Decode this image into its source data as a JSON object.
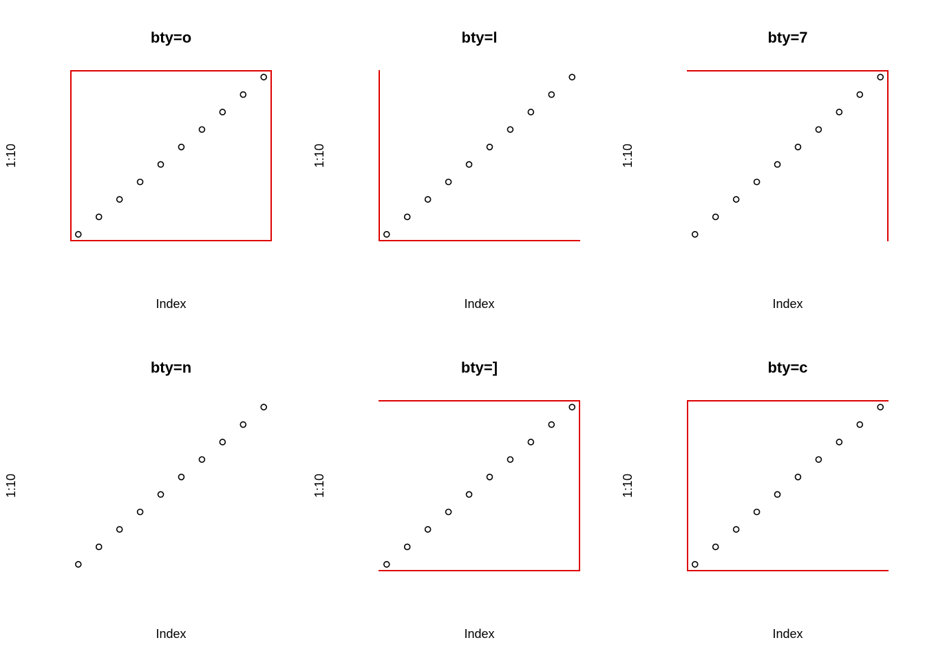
{
  "figure": {
    "colors": {
      "box": "#dd0000",
      "points": "#000000",
      "text": "#000000",
      "background": "#ffffff"
    },
    "point_shape": "open-circle"
  },
  "chart_data": [
    {
      "type": "scatter",
      "title": "bty=o",
      "xlabel": "Index",
      "ylabel": "1:10",
      "box_type": "o",
      "x": [
        1,
        2,
        3,
        4,
        5,
        6,
        7,
        8,
        9,
        10
      ],
      "y": [
        1,
        2,
        3,
        4,
        5,
        6,
        7,
        8,
        9,
        10
      ],
      "xlim": [
        1,
        10
      ],
      "ylim": [
        1,
        10
      ],
      "grid": false,
      "axes": false
    },
    {
      "type": "scatter",
      "title": "bty=l",
      "xlabel": "Index",
      "ylabel": "1:10",
      "box_type": "l",
      "x": [
        1,
        2,
        3,
        4,
        5,
        6,
        7,
        8,
        9,
        10
      ],
      "y": [
        1,
        2,
        3,
        4,
        5,
        6,
        7,
        8,
        9,
        10
      ],
      "xlim": [
        1,
        10
      ],
      "ylim": [
        1,
        10
      ],
      "grid": false,
      "axes": false
    },
    {
      "type": "scatter",
      "title": "bty=7",
      "xlabel": "Index",
      "ylabel": "1:10",
      "box_type": "7",
      "x": [
        1,
        2,
        3,
        4,
        5,
        6,
        7,
        8,
        9,
        10
      ],
      "y": [
        1,
        2,
        3,
        4,
        5,
        6,
        7,
        8,
        9,
        10
      ],
      "xlim": [
        1,
        10
      ],
      "ylim": [
        1,
        10
      ],
      "grid": false,
      "axes": false
    },
    {
      "type": "scatter",
      "title": "bty=n",
      "xlabel": "Index",
      "ylabel": "1:10",
      "box_type": "n",
      "x": [
        1,
        2,
        3,
        4,
        5,
        6,
        7,
        8,
        9,
        10
      ],
      "y": [
        1,
        2,
        3,
        4,
        5,
        6,
        7,
        8,
        9,
        10
      ],
      "xlim": [
        1,
        10
      ],
      "ylim": [
        1,
        10
      ],
      "grid": false,
      "axes": false
    },
    {
      "type": "scatter",
      "title": "bty=]",
      "xlabel": "Index",
      "ylabel": "1:10",
      "box_type": "]",
      "x": [
        1,
        2,
        3,
        4,
        5,
        6,
        7,
        8,
        9,
        10
      ],
      "y": [
        1,
        2,
        3,
        4,
        5,
        6,
        7,
        8,
        9,
        10
      ],
      "xlim": [
        1,
        10
      ],
      "ylim": [
        1,
        10
      ],
      "grid": false,
      "axes": false
    },
    {
      "type": "scatter",
      "title": "bty=c",
      "xlabel": "Index",
      "ylabel": "1:10",
      "box_type": "c",
      "x": [
        1,
        2,
        3,
        4,
        5,
        6,
        7,
        8,
        9,
        10
      ],
      "y": [
        1,
        2,
        3,
        4,
        5,
        6,
        7,
        8,
        9,
        10
      ],
      "xlim": [
        1,
        10
      ],
      "ylim": [
        1,
        10
      ],
      "grid": false,
      "axes": false
    }
  ]
}
